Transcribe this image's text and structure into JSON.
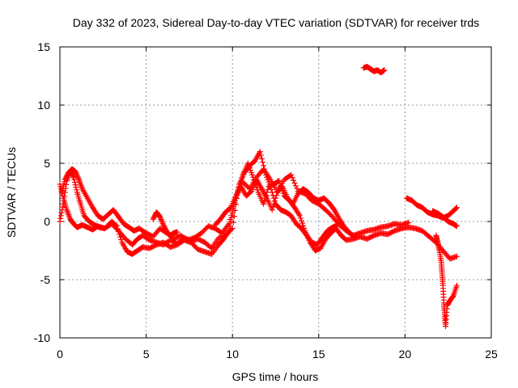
{
  "chart_data": {
    "type": "scatter",
    "title": "Day 332 of 2023, Sidereal Day-to-day VTEC variation (SDTVAR) for receiver trds",
    "xlabel": "GPS time / hours",
    "ylabel": "SDTVAR / TECUs",
    "xlim": [
      0,
      25
    ],
    "ylim": [
      -10,
      15
    ],
    "xticks": [
      0,
      5,
      10,
      15,
      20,
      25
    ],
    "yticks": [
      -10,
      -5,
      0,
      5,
      10,
      15
    ],
    "grid": true,
    "marker": "+",
    "color": "#ff0000",
    "series": [
      {
        "name": "SDTVAR",
        "segments": [
          {
            "x": [
              0.0,
              0.2,
              0.4,
              0.6,
              0.8,
              1.0,
              1.2,
              1.4,
              1.7,
              2.0,
              2.3,
              2.6,
              3.0,
              3.4,
              3.8,
              4.2,
              4.5,
              4.8,
              5.2,
              5.6,
              6.0,
              6.4,
              6.8,
              7.2,
              7.6,
              8.0,
              8.4,
              8.8,
              9.2,
              9.6,
              10.0,
              10.3,
              10.6,
              10.9,
              11.2,
              11.5,
              11.8,
              12.1,
              12.4,
              12.7,
              13.0,
              13.3,
              13.6,
              13.9,
              14.2,
              14.5,
              14.8,
              15.1,
              15.4,
              15.7,
              16.0,
              16.3,
              16.6,
              17.0,
              17.4,
              17.8,
              18.2,
              18.6,
              19.0,
              19.4,
              19.8,
              20.2,
              20.6,
              21.0,
              21.4,
              21.8,
              22.2,
              22.6,
              23.0
            ],
            "y": [
              0.0,
              1.5,
              3.5,
              4.3,
              3.8,
              2.5,
              1.5,
              0.5,
              0.0,
              -0.3,
              -0.5,
              -0.6,
              -0.2,
              -0.8,
              -1.5,
              -2.0,
              -1.5,
              -1.2,
              -1.6,
              -1.8,
              -2.0,
              -1.6,
              -1.9,
              -1.4,
              -1.7,
              -1.5,
              -1.8,
              -2.3,
              -1.4,
              -1.2,
              -0.6,
              2.5,
              4.0,
              5.0,
              3.8,
              2.5,
              1.5,
              3.0,
              3.2,
              3.5,
              2.2,
              1.8,
              1.2,
              0.5,
              -0.8,
              -1.8,
              -2.5,
              -2.3,
              -1.5,
              -1.0,
              -0.6,
              -1.2,
              -1.6,
              -1.5,
              -1.3,
              -1.5,
              -1.2,
              -1.0,
              -1.1,
              -0.8,
              -0.6,
              -0.5,
              -0.6,
              -0.8,
              -1.3,
              -1.8,
              -2.5,
              -3.2,
              -3.0
            ]
          },
          {
            "x": [
              0.0,
              0.2,
              0.4,
              0.6,
              0.8,
              1.0,
              1.3,
              1.6,
              1.9,
              2.2,
              2.6,
              3.0,
              3.3,
              3.6,
              3.9,
              4.2,
              4.5,
              4.8,
              5.2,
              5.6,
              6.0,
              6.4,
              6.8,
              7.2,
              7.6,
              8.0,
              8.4,
              8.8,
              9.2,
              9.5,
              9.8,
              10.1,
              10.4,
              10.7,
              11.0,
              11.3,
              11.6,
              11.9,
              12.2,
              12.5,
              12.8,
              13.1,
              13.4,
              13.7,
              14.0,
              14.3,
              14.6,
              14.9,
              15.2,
              15.5,
              15.8,
              16.1
            ],
            "y": [
              3.2,
              2.0,
              1.0,
              0.2,
              -0.2,
              -0.5,
              -0.3,
              -0.5,
              -0.7,
              -0.4,
              -0.6,
              0.0,
              -0.4,
              -1.8,
              -2.6,
              -2.8,
              -2.5,
              -2.2,
              -2.3,
              -2.0,
              -1.8,
              -2.2,
              -2.0,
              -1.6,
              -1.8,
              -2.4,
              -2.6,
              -2.8,
              -2.0,
              -1.5,
              -0.8,
              1.5,
              3.2,
              4.2,
              4.8,
              5.2,
              6.0,
              4.2,
              3.0,
              1.5,
              1.0,
              0.8,
              0.5,
              -0.2,
              -0.6,
              -1.2,
              -1.8,
              -2.0,
              -1.4,
              -0.8,
              -0.5,
              -0.3
            ]
          },
          {
            "x": [
              0.1,
              0.3,
              0.5,
              0.7,
              0.9,
              1.1,
              1.3,
              1.6,
              1.9,
              2.2,
              2.5,
              2.8,
              3.1,
              3.4,
              3.7,
              4.0,
              4.3,
              4.6,
              5.0,
              5.4,
              5.8,
              6.2,
              6.6,
              7.0,
              7.4,
              7.8,
              8.2,
              8.6,
              9.0,
              9.4,
              9.8,
              10.2,
              10.6,
              11.0,
              11.4,
              11.8,
              12.2,
              12.6,
              13.0,
              13.4,
              13.8,
              14.2,
              14.6,
              15.0,
              15.4,
              15.8,
              16.2,
              16.6,
              17.0,
              17.4,
              17.8,
              18.2,
              18.6,
              19.0,
              19.4,
              19.8,
              20.2
            ],
            "y": [
              2.5,
              3.6,
              4.2,
              4.5,
              4.3,
              3.6,
              2.8,
              2.0,
              1.2,
              0.5,
              0.2,
              0.6,
              1.0,
              0.4,
              -0.2,
              -0.5,
              -0.8,
              -0.6,
              -1.0,
              -1.3,
              -0.6,
              -1.0,
              -1.5,
              -1.2,
              -1.6,
              -1.4,
              -1.0,
              -0.4,
              -0.6,
              -1.0,
              -0.2,
              2.0,
              3.4,
              2.8,
              3.8,
              4.5,
              3.6,
              2.6,
              3.6,
              4.0,
              2.6,
              2.4,
              1.8,
              1.5,
              1.0,
              0.4,
              -0.3,
              -0.8,
              -1.2,
              -1.0,
              -0.8,
              -0.7,
              -0.5,
              -0.4,
              -0.2,
              -0.3,
              -0.1
            ]
          },
          {
            "x": [
              9.0,
              9.3,
              9.6,
              9.9,
              10.2,
              10.5,
              10.8,
              11.1,
              11.4,
              11.7,
              12.0,
              12.3,
              12.6,
              12.9,
              13.2,
              13.5,
              13.8,
              14.1,
              14.4,
              14.7,
              15.0,
              15.3,
              15.6,
              15.9,
              16.2,
              16.5,
              16.8,
              17.1
            ],
            "y": [
              -0.3,
              0.2,
              0.8,
              1.2,
              2.2,
              3.0,
              2.2,
              2.6,
              3.6,
              2.8,
              2.0,
              1.0,
              2.5,
              3.0,
              2.0,
              1.5,
              2.4,
              2.8,
              2.5,
              2.0,
              1.8,
              2.0,
              1.6,
              1.0,
              0.2,
              -0.5,
              -1.0,
              -1.4
            ]
          },
          {
            "x": [
              5.4,
              5.6,
              5.8,
              6.0,
              6.2,
              6.4,
              6.6,
              6.8
            ],
            "y": [
              0.2,
              0.8,
              0.4,
              -0.3,
              -0.9,
              -1.2,
              -1.0,
              -0.9
            ]
          },
          {
            "x": [
              17.6,
              17.8,
              18.0,
              18.2,
              18.4,
              18.6,
              18.8
            ],
            "y": [
              13.2,
              13.3,
              13.1,
              12.9,
              13.0,
              12.8,
              13.0
            ]
          },
          {
            "x": [
              20.1,
              20.4,
              20.7,
              21.0,
              21.3,
              21.6,
              21.9,
              22.2,
              22.5,
              22.8,
              23.0
            ],
            "y": [
              2.0,
              1.8,
              1.4,
              1.2,
              0.8,
              0.6,
              0.5,
              0.3,
              0.5,
              0.9,
              1.2
            ]
          },
          {
            "x": [
              21.6,
              21.9,
              22.2,
              22.5,
              22.8,
              23.0
            ],
            "y": [
              0.9,
              0.7,
              0.4,
              0.0,
              -0.2,
              -0.4
            ]
          },
          {
            "x": [
              21.8,
              21.9,
              22.0,
              22.1,
              22.15,
              22.2,
              22.25,
              22.3,
              22.35,
              22.45,
              22.6,
              22.8,
              23.0
            ],
            "y": [
              -1.2,
              -1.8,
              -2.5,
              -3.5,
              -4.5,
              -5.5,
              -7.0,
              -8.0,
              -9.0,
              -7.2,
              -6.8,
              -6.4,
              -5.5
            ]
          }
        ]
      }
    ]
  }
}
